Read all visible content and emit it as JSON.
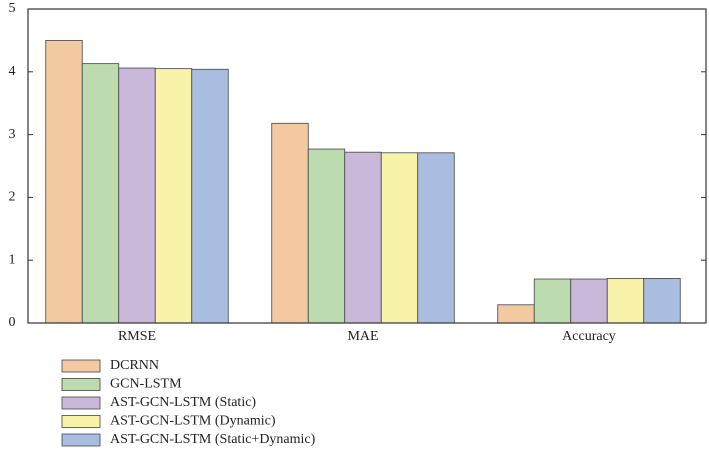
{
  "chart_data": {
    "type": "bar",
    "categories": [
      "RMSE",
      "MAE",
      "Accuracy"
    ],
    "series": [
      {
        "name": "DCRNN",
        "color": "#f2c9a0",
        "values": [
          4.5,
          3.18,
          0.29
        ]
      },
      {
        "name": "GCN-LSTM",
        "color": "#bcdcb0",
        "values": [
          4.13,
          2.77,
          0.7
        ]
      },
      {
        "name": "AST-GCN-LSTM (Static)",
        "color": "#c9b8da",
        "values": [
          4.06,
          2.72,
          0.7
        ]
      },
      {
        "name": "AST-GCN-LSTM (Dynamic)",
        "color": "#f8f3a8",
        "values": [
          4.05,
          2.71,
          0.71
        ]
      },
      {
        "name": "AST-GCN-LSTM (Static+Dynamic)",
        "color": "#a9bde0",
        "values": [
          4.04,
          2.71,
          0.71
        ]
      }
    ],
    "ylim": [
      0,
      5
    ],
    "yticks": [
      0,
      1,
      2,
      3,
      4,
      5
    ],
    "legend": "bottom-left"
  }
}
